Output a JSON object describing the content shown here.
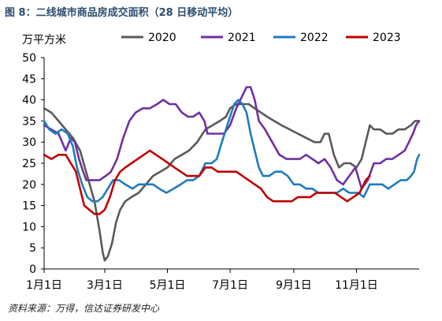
{
  "figure": {
    "title": "图 8：二线城市商品房成交面积（28 日移动平均）",
    "source": "资料来源：万得，信达证券研发中心"
  },
  "chart_data": {
    "type": "line",
    "title": "",
    "unit_label": "万平方米",
    "ylabel": "万平方米",
    "xlabel": "",
    "ylim": [
      0,
      50
    ],
    "yticks": [
      0,
      5,
      10,
      15,
      20,
      25,
      30,
      35,
      40,
      45,
      50
    ],
    "x_domain": [
      1,
      366
    ],
    "x_unit": "day of year",
    "xticks": [
      {
        "day": 1,
        "label": "1月1日"
      },
      {
        "day": 60,
        "label": "3月1日"
      },
      {
        "day": 121,
        "label": "5月1日"
      },
      {
        "day": 182,
        "label": "7月1日"
      },
      {
        "day": 244,
        "label": "9月1日"
      },
      {
        "day": 305,
        "label": "11月1日"
      }
    ],
    "grid": false,
    "legend_position": "top",
    "series": [
      {
        "name": "2020",
        "color": "#595959",
        "points": [
          [
            1,
            38
          ],
          [
            8,
            37
          ],
          [
            15,
            35
          ],
          [
            22,
            33
          ],
          [
            29,
            31
          ],
          [
            36,
            28
          ],
          [
            43,
            22
          ],
          [
            50,
            16
          ],
          [
            55,
            9
          ],
          [
            58,
            4
          ],
          [
            60,
            2
          ],
          [
            63,
            3
          ],
          [
            67,
            6
          ],
          [
            71,
            11
          ],
          [
            75,
            14
          ],
          [
            80,
            16
          ],
          [
            86,
            17
          ],
          [
            93,
            18
          ],
          [
            100,
            20
          ],
          [
            107,
            22
          ],
          [
            114,
            23
          ],
          [
            121,
            24
          ],
          [
            128,
            26
          ],
          [
            135,
            27
          ],
          [
            142,
            28
          ],
          [
            150,
            30
          ],
          [
            158,
            33
          ],
          [
            165,
            34
          ],
          [
            172,
            35
          ],
          [
            178,
            36
          ],
          [
            182,
            38
          ],
          [
            188,
            39
          ],
          [
            194,
            39
          ],
          [
            200,
            39
          ],
          [
            206,
            38
          ],
          [
            212,
            37
          ],
          [
            218,
            36
          ],
          [
            225,
            35
          ],
          [
            232,
            34
          ],
          [
            240,
            33
          ],
          [
            248,
            32
          ],
          [
            256,
            31
          ],
          [
            264,
            30
          ],
          [
            270,
            30
          ],
          [
            274,
            32
          ],
          [
            278,
            32
          ],
          [
            283,
            27
          ],
          [
            288,
            24
          ],
          [
            293,
            25
          ],
          [
            299,
            25
          ],
          [
            305,
            24
          ],
          [
            310,
            26
          ],
          [
            314,
            30
          ],
          [
            318,
            34
          ],
          [
            322,
            33
          ],
          [
            328,
            33
          ],
          [
            334,
            32
          ],
          [
            340,
            32
          ],
          [
            346,
            33
          ],
          [
            352,
            33
          ],
          [
            358,
            34
          ],
          [
            362,
            35
          ],
          [
            366,
            35
          ]
        ]
      },
      {
        "name": "2021",
        "color": "#7030a0",
        "points": [
          [
            1,
            34
          ],
          [
            8,
            33
          ],
          [
            15,
            32
          ],
          [
            22,
            28
          ],
          [
            27,
            31
          ],
          [
            31,
            30
          ],
          [
            35,
            26
          ],
          [
            39,
            23
          ],
          [
            42,
            21
          ],
          [
            48,
            21
          ],
          [
            55,
            21
          ],
          [
            61,
            22
          ],
          [
            66,
            23
          ],
          [
            72,
            26
          ],
          [
            78,
            31
          ],
          [
            84,
            35
          ],
          [
            90,
            37
          ],
          [
            97,
            38
          ],
          [
            104,
            38
          ],
          [
            111,
            39
          ],
          [
            117,
            40
          ],
          [
            123,
            39
          ],
          [
            129,
            39
          ],
          [
            135,
            37
          ],
          [
            141,
            36
          ],
          [
            146,
            36
          ],
          [
            152,
            37
          ],
          [
            157,
            35
          ],
          [
            160,
            32
          ],
          [
            165,
            32
          ],
          [
            170,
            32
          ],
          [
            176,
            32
          ],
          [
            182,
            34
          ],
          [
            188,
            38
          ],
          [
            194,
            41
          ],
          [
            198,
            43
          ],
          [
            202,
            43
          ],
          [
            206,
            40
          ],
          [
            210,
            35
          ],
          [
            216,
            33
          ],
          [
            223,
            30
          ],
          [
            230,
            27
          ],
          [
            237,
            26
          ],
          [
            244,
            26
          ],
          [
            250,
            26
          ],
          [
            256,
            27
          ],
          [
            262,
            26
          ],
          [
            268,
            25
          ],
          [
            274,
            26
          ],
          [
            280,
            24
          ],
          [
            286,
            21
          ],
          [
            292,
            20
          ],
          [
            298,
            22
          ],
          [
            304,
            24
          ],
          [
            310,
            19
          ],
          [
            316,
            21
          ],
          [
            322,
            25
          ],
          [
            328,
            25
          ],
          [
            334,
            26
          ],
          [
            340,
            26
          ],
          [
            346,
            27
          ],
          [
            352,
            28
          ],
          [
            356,
            30
          ],
          [
            360,
            32
          ],
          [
            363,
            34
          ],
          [
            366,
            35
          ]
        ]
      },
      {
        "name": "2022",
        "color": "#1f7bbd",
        "points": [
          [
            1,
            35
          ],
          [
            6,
            33
          ],
          [
            12,
            32
          ],
          [
            18,
            33
          ],
          [
            24,
            32
          ],
          [
            29,
            29
          ],
          [
            33,
            24
          ],
          [
            38,
            20
          ],
          [
            43,
            17
          ],
          [
            48,
            16
          ],
          [
            53,
            16
          ],
          [
            58,
            17
          ],
          [
            63,
            19
          ],
          [
            68,
            21
          ],
          [
            74,
            21
          ],
          [
            80,
            20
          ],
          [
            87,
            19
          ],
          [
            93,
            20
          ],
          [
            100,
            20
          ],
          [
            107,
            20
          ],
          [
            113,
            19
          ],
          [
            120,
            18
          ],
          [
            127,
            19
          ],
          [
            134,
            20
          ],
          [
            140,
            21
          ],
          [
            146,
            21
          ],
          [
            152,
            22
          ],
          [
            158,
            25
          ],
          [
            164,
            25
          ],
          [
            169,
            26
          ],
          [
            174,
            30
          ],
          [
            178,
            33
          ],
          [
            182,
            36
          ],
          [
            186,
            39
          ],
          [
            190,
            40
          ],
          [
            194,
            39
          ],
          [
            198,
            37
          ],
          [
            202,
            32
          ],
          [
            206,
            28
          ],
          [
            210,
            24
          ],
          [
            214,
            22
          ],
          [
            220,
            22
          ],
          [
            226,
            23
          ],
          [
            232,
            23
          ],
          [
            238,
            22
          ],
          [
            244,
            20
          ],
          [
            250,
            20
          ],
          [
            256,
            19
          ],
          [
            262,
            19
          ],
          [
            268,
            18
          ],
          [
            274,
            18
          ],
          [
            280,
            18
          ],
          [
            286,
            18
          ],
          [
            292,
            19
          ],
          [
            298,
            18
          ],
          [
            303,
            18
          ],
          [
            307,
            18
          ],
          [
            312,
            17
          ],
          [
            318,
            20
          ],
          [
            324,
            20
          ],
          [
            330,
            20
          ],
          [
            336,
            19
          ],
          [
            342,
            20
          ],
          [
            348,
            21
          ],
          [
            354,
            21
          ],
          [
            358,
            22
          ],
          [
            361,
            23
          ],
          [
            364,
            26
          ],
          [
            366,
            27
          ]
        ]
      },
      {
        "name": "2023",
        "color": "#c00000",
        "points": [
          [
            1,
            27
          ],
          [
            8,
            26
          ],
          [
            15,
            27
          ],
          [
            22,
            27
          ],
          [
            27,
            25
          ],
          [
            32,
            23
          ],
          [
            36,
            19
          ],
          [
            40,
            15
          ],
          [
            45,
            14
          ],
          [
            50,
            13
          ],
          [
            55,
            13
          ],
          [
            60,
            14
          ],
          [
            65,
            17
          ],
          [
            70,
            21
          ],
          [
            75,
            23
          ],
          [
            80,
            24
          ],
          [
            86,
            25
          ],
          [
            92,
            26
          ],
          [
            98,
            27
          ],
          [
            104,
            28
          ],
          [
            110,
            27
          ],
          [
            116,
            26
          ],
          [
            122,
            25
          ],
          [
            128,
            24
          ],
          [
            134,
            23
          ],
          [
            140,
            22
          ],
          [
            146,
            22
          ],
          [
            152,
            22
          ],
          [
            158,
            24
          ],
          [
            164,
            24
          ],
          [
            170,
            23
          ],
          [
            176,
            23
          ],
          [
            182,
            23
          ],
          [
            188,
            23
          ],
          [
            194,
            22
          ],
          [
            200,
            21
          ],
          [
            206,
            20
          ],
          [
            212,
            19
          ],
          [
            218,
            17
          ],
          [
            224,
            16
          ],
          [
            230,
            16
          ],
          [
            236,
            16
          ],
          [
            242,
            16
          ],
          [
            248,
            17
          ],
          [
            254,
            17
          ],
          [
            260,
            17
          ],
          [
            266,
            18
          ],
          [
            272,
            18
          ],
          [
            278,
            18
          ],
          [
            284,
            18
          ],
          [
            290,
            17
          ],
          [
            296,
            16
          ],
          [
            302,
            17
          ],
          [
            308,
            18
          ],
          [
            314,
            21
          ],
          [
            318,
            22
          ]
        ]
      }
    ]
  }
}
